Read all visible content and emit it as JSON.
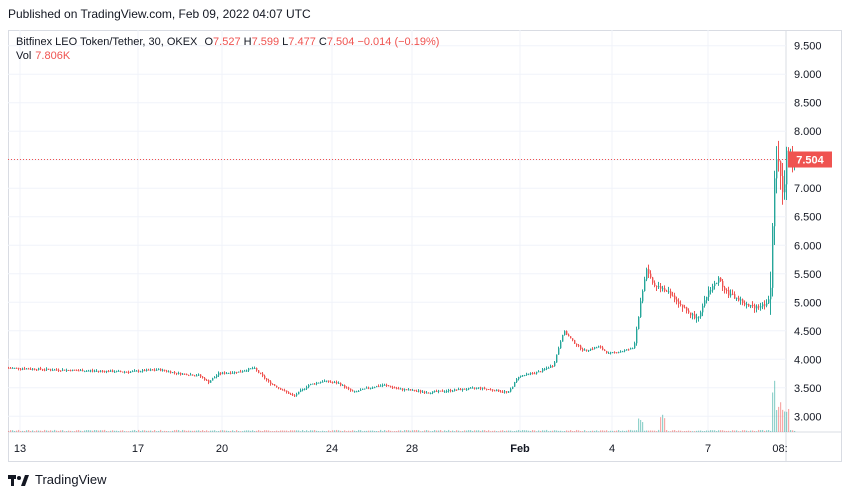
{
  "header": {
    "published": "Published on TradingView.com, Feb 09, 2022 04:07 UTC"
  },
  "legend": {
    "symbol": "Bitfinex LEO Token/Tether, 30, OKEX",
    "o_label": "O",
    "o_value": "7.527",
    "h_label": "H",
    "h_value": "7.599",
    "l_label": "L",
    "l_value": "7.477",
    "c_label": "C",
    "c_value": "7.504",
    "change": "−0.014 (−0.19%)",
    "vol_label": "Vol",
    "vol_value": "7.806K"
  },
  "colors": {
    "up": "#26a69a",
    "down": "#ef5350",
    "grid": "#f0f3fa",
    "price_line": "#ef5350"
  },
  "footer": {
    "brand": "TradingView",
    "logo_icon": "tradingview-logo-icon"
  },
  "chart_data": {
    "type": "candlestick",
    "y_axis_ticks": [
      "9.500",
      "9.000",
      "8.500",
      "8.000",
      "7.500",
      "7.000",
      "6.500",
      "6.000",
      "5.500",
      "5.000",
      "4.500",
      "4.000",
      "3.500",
      "3.000"
    ],
    "y_range": [
      2.9,
      9.6
    ],
    "x_axis_ticks": [
      "13",
      "17",
      "20",
      "24",
      "28",
      "Feb",
      "4",
      "7",
      "08:"
    ],
    "last_price": 7.504,
    "last_price_label": "7.504",
    "price_path": [
      [
        0,
        3.85
      ],
      [
        40,
        3.82
      ],
      [
        80,
        3.8
      ],
      [
        120,
        3.78
      ],
      [
        150,
        3.82
      ],
      [
        170,
        3.75
      ],
      [
        190,
        3.72
      ],
      [
        200,
        3.6
      ],
      [
        210,
        3.75
      ],
      [
        230,
        3.78
      ],
      [
        245,
        3.85
      ],
      [
        260,
        3.6
      ],
      [
        275,
        3.45
      ],
      [
        285,
        3.35
      ],
      [
        300,
        3.55
      ],
      [
        315,
        3.62
      ],
      [
        330,
        3.58
      ],
      [
        345,
        3.42
      ],
      [
        360,
        3.5
      ],
      [
        375,
        3.55
      ],
      [
        390,
        3.48
      ],
      [
        405,
        3.45
      ],
      [
        420,
        3.42
      ],
      [
        440,
        3.45
      ],
      [
        470,
        3.5
      ],
      [
        500,
        3.42
      ],
      [
        510,
        3.7
      ],
      [
        530,
        3.78
      ],
      [
        545,
        3.9
      ],
      [
        555,
        4.5
      ],
      [
        565,
        4.3
      ],
      [
        575,
        4.15
      ],
      [
        590,
        4.22
      ],
      [
        600,
        4.1
      ],
      [
        615,
        4.15
      ],
      [
        625,
        4.2
      ],
      [
        632,
        5.0
      ],
      [
        638,
        5.6
      ],
      [
        645,
        5.3
      ],
      [
        655,
        5.25
      ],
      [
        665,
        5.1
      ],
      [
        675,
        4.9
      ],
      [
        685,
        4.75
      ],
      [
        692,
        4.8
      ],
      [
        700,
        5.2
      ],
      [
        710,
        5.4
      ],
      [
        720,
        5.15
      ],
      [
        730,
        5.05
      ],
      [
        740,
        4.92
      ],
      [
        755,
        4.95
      ],
      [
        762,
        5.1
      ],
      [
        765,
        7.0
      ],
      [
        770,
        7.6
      ],
      [
        775,
        6.8
      ],
      [
        778,
        7.8
      ],
      [
        782,
        7.5
      ],
      [
        786,
        7.5
      ]
    ],
    "volume_spikes": [
      [
        632,
        0.2
      ],
      [
        654,
        0.3
      ],
      [
        765,
        0.9
      ],
      [
        772,
        0.5
      ],
      [
        778,
        0.3
      ]
    ]
  }
}
